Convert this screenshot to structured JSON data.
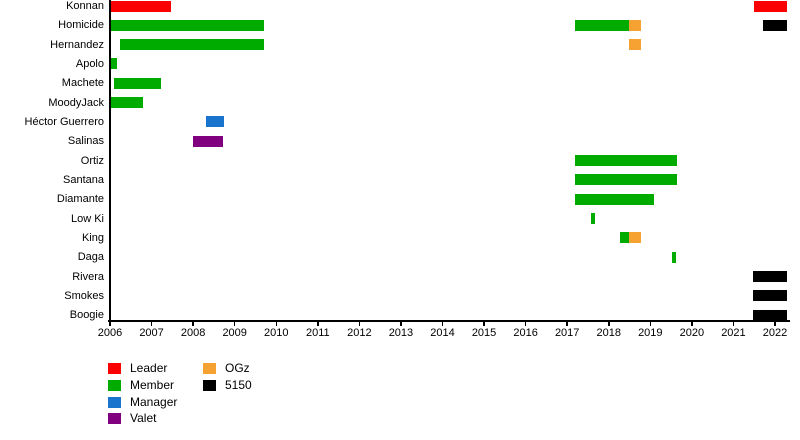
{
  "chart_data": {
    "type": "gantt-timeline",
    "title": "",
    "xlabel": "",
    "ylabel": "",
    "grid": false,
    "legend_position": "bottom-left",
    "x_axis": {
      "min": 2006,
      "max": 2022.35,
      "ticks": [
        2006,
        2007,
        2008,
        2009,
        2010,
        2011,
        2012,
        2013,
        2014,
        2015,
        2016,
        2017,
        2018,
        2019,
        2020,
        2021,
        2022
      ]
    },
    "legend": [
      {
        "label": "Leader",
        "color": "#fa0000"
      },
      {
        "label": "Member",
        "color": "#00ab00"
      },
      {
        "label": "Manager",
        "color": "#1874cd"
      },
      {
        "label": "Valet",
        "color": "#800080"
      },
      {
        "label": "OGz",
        "color": "#f5a233"
      },
      {
        "label": "5150",
        "color": "#000000"
      }
    ],
    "rows": [
      {
        "name": "Konnan",
        "segments": [
          {
            "start": 2006.02,
            "end": 2007.47,
            "role": "Leader"
          },
          {
            "start": 2021.5,
            "end": 2022.28,
            "role": "Leader"
          }
        ]
      },
      {
        "name": "Homicide",
        "segments": [
          {
            "start": 2006.02,
            "end": 2009.71,
            "role": "Member"
          },
          {
            "start": 2017.18,
            "end": 2018.49,
            "role": "Member"
          },
          {
            "start": 2018.49,
            "end": 2018.78,
            "role": "OGz"
          },
          {
            "start": 2021.72,
            "end": 2022.28,
            "role": "5150"
          }
        ]
      },
      {
        "name": "Hernandez",
        "segments": [
          {
            "start": 2006.25,
            "end": 2009.71,
            "role": "Member"
          },
          {
            "start": 2018.49,
            "end": 2018.78,
            "role": "OGz"
          }
        ]
      },
      {
        "name": "Apolo",
        "segments": [
          {
            "start": 2006.02,
            "end": 2006.16,
            "role": "Member"
          }
        ]
      },
      {
        "name": "Machete",
        "segments": [
          {
            "start": 2006.1,
            "end": 2007.23,
            "role": "Member"
          }
        ]
      },
      {
        "name": "MoodyJack",
        "segments": [
          {
            "start": 2006.02,
            "end": 2006.8,
            "role": "Member"
          }
        ]
      },
      {
        "name": "Héctor Guerrero",
        "segments": [
          {
            "start": 2008.3,
            "end": 2008.75,
            "role": "Manager"
          }
        ]
      },
      {
        "name": "Salinas",
        "segments": [
          {
            "start": 2008.0,
            "end": 2008.72,
            "role": "Valet"
          }
        ]
      },
      {
        "name": "Ortiz",
        "segments": [
          {
            "start": 2017.18,
            "end": 2019.65,
            "role": "Member"
          }
        ]
      },
      {
        "name": "Santana",
        "segments": [
          {
            "start": 2017.18,
            "end": 2019.65,
            "role": "Member"
          }
        ]
      },
      {
        "name": "Diamante",
        "segments": [
          {
            "start": 2017.18,
            "end": 2019.1,
            "role": "Member"
          }
        ]
      },
      {
        "name": "Low Ki",
        "segments": [
          {
            "start": 2017.57,
            "end": 2017.66,
            "role": "Member"
          }
        ]
      },
      {
        "name": "King",
        "segments": [
          {
            "start": 2018.28,
            "end": 2018.49,
            "role": "Member"
          },
          {
            "start": 2018.49,
            "end": 2018.78,
            "role": "OGz"
          }
        ]
      },
      {
        "name": "Daga",
        "segments": [
          {
            "start": 2019.53,
            "end": 2019.63,
            "role": "Member"
          }
        ]
      },
      {
        "name": "Rivera",
        "segments": [
          {
            "start": 2021.48,
            "end": 2022.28,
            "role": "5150"
          }
        ]
      },
      {
        "name": "Smokes",
        "segments": [
          {
            "start": 2021.48,
            "end": 2022.28,
            "role": "5150"
          }
        ]
      },
      {
        "name": "Boogie",
        "segments": [
          {
            "start": 2021.48,
            "end": 2022.28,
            "role": "5150"
          }
        ]
      }
    ]
  }
}
